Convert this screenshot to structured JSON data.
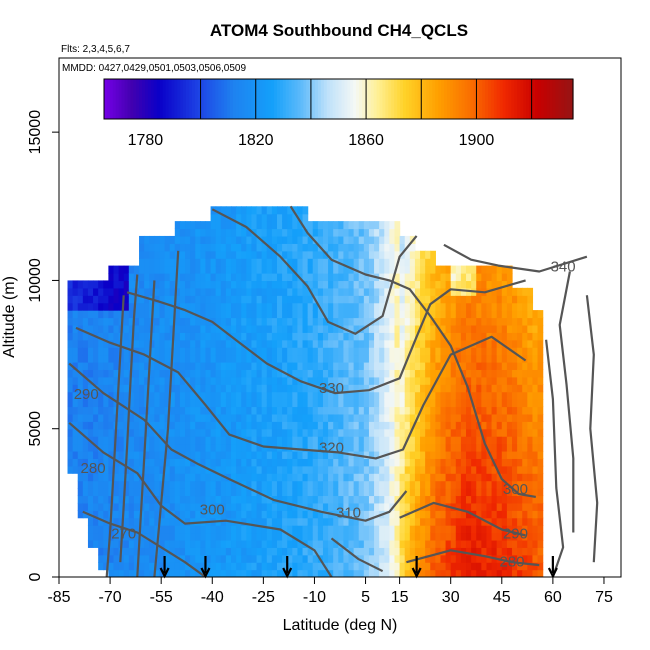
{
  "chart_data": {
    "type": "heatmap",
    "title": "ATOM4 Southbound CH4_QCLS",
    "subtitle_flights": "Flts: 2,3,4,5,6,7",
    "subtitle_dates": "MMDD: 0427,0429,0501,0503,0506,0509",
    "xlabel": "Latitude (deg N)",
    "ylabel": "Altitude (m)",
    "xlim": [
      -85,
      80
    ],
    "ylim": [
      0,
      17500
    ],
    "x_ticks": [
      -85,
      -70,
      -55,
      -40,
      -25,
      -10,
      5,
      15,
      30,
      45,
      60,
      75
    ],
    "x_tick_labels": [
      "-85",
      "-70",
      "-55",
      "-40",
      "-25",
      "-10",
      "5",
      "15",
      "30",
      "45",
      "60",
      "75"
    ],
    "y_ticks": [
      0,
      5000,
      10000,
      15000
    ],
    "y_tick_labels": [
      "0",
      "5000",
      "10000",
      "15000"
    ],
    "colorbar": {
      "range": [
        1765,
        1935
      ],
      "ticks": [
        1780,
        1820,
        1860,
        1900
      ],
      "tick_labels": [
        "1780",
        "1820",
        "1860",
        "1900"
      ],
      "boundaries": [
        1800,
        1820,
        1840,
        1860,
        1880,
        1900,
        1920
      ]
    },
    "ch4_profile_by_latitude": [
      {
        "lat": -83,
        "ch4": 1812
      },
      {
        "lat": -70,
        "ch4": 1814
      },
      {
        "lat": -55,
        "ch4": 1817
      },
      {
        "lat": -40,
        "ch4": 1821
      },
      {
        "lat": -25,
        "ch4": 1825
      },
      {
        "lat": -10,
        "ch4": 1830
      },
      {
        "lat": 5,
        "ch4": 1838
      },
      {
        "lat": 12,
        "ch4": 1852
      },
      {
        "lat": 17,
        "ch4": 1872
      },
      {
        "lat": 25,
        "ch4": 1895
      },
      {
        "lat": 35,
        "ch4": 1908
      },
      {
        "lat": 45,
        "ch4": 1905
      },
      {
        "lat": 55,
        "ch4": 1897
      }
    ],
    "contour_labels": [
      {
        "text": "340",
        "lat": 63,
        "alt": 10300
      },
      {
        "text": "330",
        "lat": -5,
        "alt": 6200
      },
      {
        "text": "320",
        "lat": -5,
        "alt": 4200
      },
      {
        "text": "310",
        "lat": 0,
        "alt": 2000
      },
      {
        "text": "300",
        "lat": -40,
        "alt": 2100
      },
      {
        "text": "300",
        "lat": 49,
        "alt": 2800
      },
      {
        "text": "290",
        "lat": -77,
        "alt": 6000
      },
      {
        "text": "280",
        "lat": -75,
        "alt": 3500
      },
      {
        "text": "270",
        "lat": -66,
        "alt": 1300
      },
      {
        "text": "290",
        "lat": 49,
        "alt": 1300
      },
      {
        "text": "280",
        "lat": 48,
        "alt": 350
      }
    ],
    "flight_arrow_latitudes": [
      -54,
      -42,
      -18,
      20,
      60
    ]
  }
}
